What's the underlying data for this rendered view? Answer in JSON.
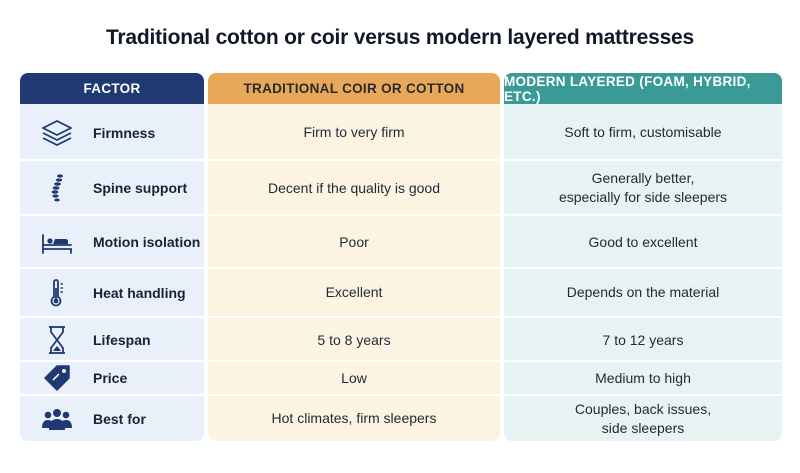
{
  "title": "Traditional cotton or coir versus modern layered mattresses",
  "headers": {
    "factor": "FACTOR",
    "traditional": "TRADITIONAL COIR OR COTTON",
    "modern": "MODERN LAYERED (FOAM, HYBRID, ETC.)"
  },
  "rows": [
    {
      "icon": "layers-icon",
      "factor": "Firmness",
      "traditional": [
        "Firm to very firm"
      ],
      "modern": [
        "Soft to firm, customisable"
      ]
    },
    {
      "icon": "spine-icon",
      "factor": "Spine support",
      "traditional": [
        "Decent if the quality is good"
      ],
      "modern": [
        "Generally better,",
        "especially for side sleepers"
      ]
    },
    {
      "icon": "bed-sleeper-icon",
      "factor": "Motion isolation",
      "traditional": [
        "Poor"
      ],
      "modern": [
        "Good to excellent"
      ]
    },
    {
      "icon": "thermometer-icon",
      "factor": "Heat handling",
      "traditional": [
        "Excellent"
      ],
      "modern": [
        "Depends on the material"
      ]
    },
    {
      "icon": "hourglass-icon",
      "factor": "Lifespan",
      "traditional": [
        "5 to 8 years"
      ],
      "modern": [
        "7 to 12 years"
      ]
    },
    {
      "icon": "price-tag-icon",
      "factor": "Price",
      "traditional": [
        "Low"
      ],
      "modern": [
        "Medium to high"
      ]
    },
    {
      "icon": "people-icon",
      "factor": "Best for",
      "traditional": [
        "Hot climates, firm sleepers"
      ],
      "modern": [
        "Couples, back issues,",
        "side sleepers"
      ]
    }
  ],
  "colors": {
    "header_factor": "#1f3a72",
    "header_traditional": "#e8a85a",
    "header_modern": "#3a9a96",
    "icon": "#1f3a72"
  }
}
